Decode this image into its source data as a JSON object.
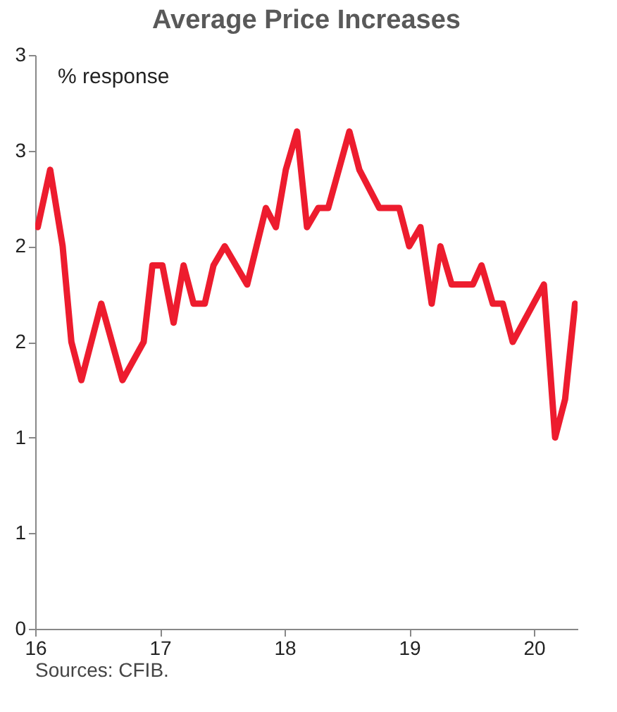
{
  "chart_data": {
    "type": "line",
    "title": "Average Price Increases",
    "annotations": [
      "% response",
      "Sources: CFIB."
    ],
    "x": [
      16.02,
      16.12,
      16.22,
      16.29,
      16.37,
      16.53,
      16.7,
      16.87,
      16.94,
      17.02,
      17.11,
      17.19,
      17.27,
      17.36,
      17.43,
      17.52,
      17.7,
      17.85,
      17.93,
      18.01,
      18.1,
      18.18,
      18.27,
      18.35,
      18.52,
      18.6,
      18.76,
      18.92,
      19.0,
      19.09,
      19.18,
      19.25,
      19.34,
      19.51,
      19.58,
      19.67,
      19.75,
      19.83,
      20.08,
      20.17,
      20.25,
      20.33
    ],
    "series": [
      {
        "color": "#ed1c2e",
        "values": [
          2.1,
          2.4,
          2.0,
          1.5,
          1.3,
          1.7,
          1.3,
          1.5,
          1.9,
          1.9,
          1.6,
          1.9,
          1.7,
          1.7,
          1.9,
          2.0,
          1.8,
          2.2,
          2.1,
          2.4,
          2.6,
          2.1,
          2.2,
          2.2,
          2.6,
          2.4,
          2.2,
          2.2,
          2.0,
          2.1,
          1.7,
          2.0,
          1.8,
          1.8,
          1.9,
          1.7,
          1.7,
          1.5,
          1.8,
          1.0,
          1.2,
          1.7
        ]
      }
    ],
    "xlim": [
      16,
      20.35
    ],
    "xticks": [
      16,
      17,
      18,
      19,
      20
    ],
    "ylim": [
      0,
      3
    ],
    "yticks": [
      0,
      {
        "value": 0.5,
        "label": "1"
      },
      {
        "value": 1,
        "label": "1"
      },
      {
        "value": 1.5,
        "label": "2"
      },
      {
        "value": 2,
        "label": "2"
      },
      {
        "value": 2.5,
        "label": "3"
      },
      {
        "value": 3,
        "label": "3"
      }
    ],
    "grid": false,
    "legend": false,
    "marker": "none",
    "line_style": "solid"
  }
}
